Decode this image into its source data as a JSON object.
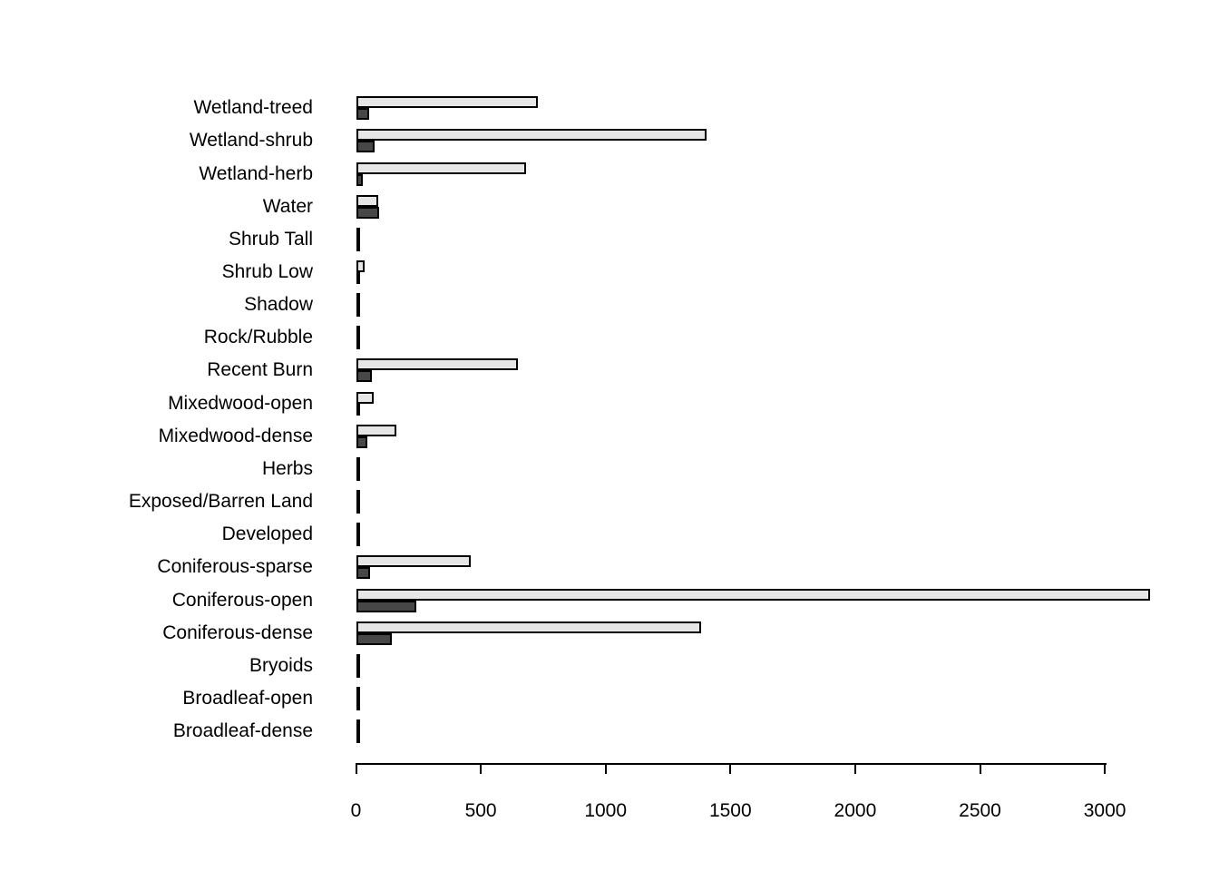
{
  "chart_data": {
    "type": "bar",
    "orientation": "horizontal",
    "title": "",
    "xlabel": "",
    "ylabel": "",
    "grid": false,
    "legend": "none",
    "background_color": "#ffffff",
    "bar_border_color": "#000000",
    "axis_color": "#000000",
    "xlim": [
      0,
      3200
    ],
    "x_ticks": [
      0,
      500,
      1000,
      1500,
      2000,
      2500,
      3000
    ],
    "categories": [
      "Wetland-treed",
      "Wetland-shrub",
      "Wetland-herb",
      "Water",
      "Shrub Tall",
      "Shrub Low",
      "Shadow",
      "Rock/Rubble",
      "Recent Burn",
      "Mixedwood-open",
      "Mixedwood-dense",
      "Herbs",
      "Exposed/Barren Land",
      "Developed",
      "Coniferous-sparse",
      "Coniferous-open",
      "Coniferous-dense",
      "Bryoids",
      "Broadleaf-open",
      "Broadleaf-dense"
    ],
    "series": [
      {
        "name": "light-gray-bar",
        "color": "#e6e6e6",
        "values": [
          727,
          1404,
          681,
          88,
          5,
          34,
          3,
          4,
          650,
          71,
          162,
          3,
          5,
          5,
          460,
          3182,
          1384,
          3,
          6,
          6
        ]
      },
      {
        "name": "dark-gray-bar",
        "color": "#474747",
        "values": [
          51,
          75,
          29,
          92,
          8,
          7,
          3,
          3,
          65,
          12,
          47,
          4,
          4,
          5,
          57,
          240,
          142,
          4,
          6,
          11
        ]
      }
    ]
  }
}
